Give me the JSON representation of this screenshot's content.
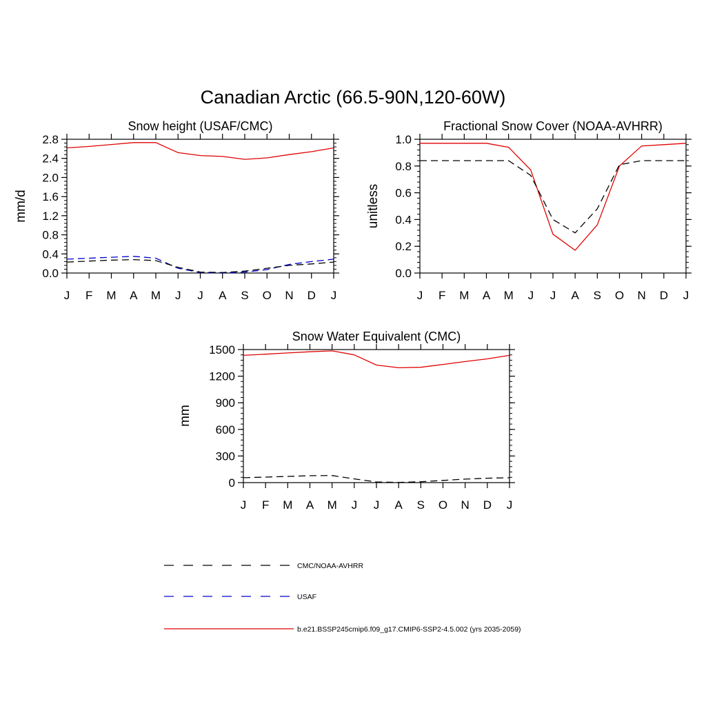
{
  "figure": {
    "title": "Canadian Arctic (66.5-90N,120-60W)"
  },
  "months": [
    "J",
    "F",
    "M",
    "A",
    "M",
    "J",
    "J",
    "A",
    "S",
    "O",
    "N",
    "D",
    "J"
  ],
  "colors": {
    "obs": "#000000",
    "usaf": "#0000cc",
    "model": "#e00000"
  },
  "legend": [
    {
      "key": "obs",
      "label": "CMC/NOAA-AVHRR",
      "style": "dashed"
    },
    {
      "key": "usaf",
      "label": "USAF",
      "style": "dashed"
    },
    {
      "key": "model",
      "label": "b.e21.BSSP245cmip6.f09_g17.CMIP6-SSP2-4.5.002 (yrs 2035-2059)",
      "style": "solid"
    }
  ],
  "chart_data": [
    {
      "type": "line",
      "title": "Snow height (USAF/CMC)",
      "xlabel": "",
      "ylabel": "mm/d",
      "ylim": [
        0,
        2.8
      ],
      "yticks": [
        "0.0",
        "0.4",
        "0.8",
        "1.2",
        "1.6",
        "2.0",
        "2.4",
        "2.8"
      ],
      "yticks_values": [
        0,
        0.4,
        0.8,
        1.2,
        1.6,
        2.0,
        2.4,
        2.8
      ],
      "yminor_step": 0.08,
      "categories": [
        "J",
        "F",
        "M",
        "A",
        "M",
        "J",
        "J",
        "A",
        "S",
        "O",
        "N",
        "D",
        "J"
      ],
      "series": [
        {
          "key": "model",
          "values": [
            2.62,
            2.65,
            2.69,
            2.73,
            2.73,
            2.52,
            2.46,
            2.44,
            2.38,
            2.41,
            2.48,
            2.54,
            2.62
          ]
        },
        {
          "key": "obs",
          "values": [
            0.23,
            0.25,
            0.27,
            0.28,
            0.26,
            0.12,
            0.02,
            0.01,
            0.04,
            0.1,
            0.16,
            0.19,
            0.23
          ]
        },
        {
          "key": "usaf",
          "values": [
            0.29,
            0.31,
            0.33,
            0.35,
            0.31,
            0.1,
            0.01,
            0.0,
            0.02,
            0.07,
            0.18,
            0.24,
            0.29
          ]
        }
      ]
    },
    {
      "type": "line",
      "title": "Fractional Snow Cover (NOAA-AVHRR)",
      "xlabel": "",
      "ylabel": "unitless",
      "ylim": [
        0,
        1.0
      ],
      "yticks": [
        "0.0",
        "0.2",
        "0.4",
        "0.6",
        "0.8",
        "1.0"
      ],
      "yticks_values": [
        0,
        0.2,
        0.4,
        0.6,
        0.8,
        1.0
      ],
      "yminor_step": 0.04,
      "categories": [
        "J",
        "F",
        "M",
        "A",
        "M",
        "J",
        "J",
        "A",
        "S",
        "O",
        "N",
        "D",
        "J"
      ],
      "series": [
        {
          "key": "model",
          "values": [
            0.97,
            0.97,
            0.97,
            0.97,
            0.94,
            0.77,
            0.29,
            0.17,
            0.36,
            0.8,
            0.95,
            0.96,
            0.97
          ]
        },
        {
          "key": "obs",
          "values": [
            0.84,
            0.84,
            0.84,
            0.84,
            0.84,
            0.73,
            0.4,
            0.3,
            0.48,
            0.81,
            0.84,
            0.84,
            0.84
          ]
        }
      ]
    },
    {
      "type": "line",
      "title": "Snow Water Equivalent (CMC)",
      "xlabel": "",
      "ylabel": "mm",
      "ylim": [
        0,
        1500
      ],
      "yticks": [
        "0",
        "300",
        "600",
        "900",
        "1200",
        "1500"
      ],
      "yticks_values": [
        0,
        300,
        600,
        900,
        1200,
        1500
      ],
      "yminor_step": 60,
      "categories": [
        "J",
        "F",
        "M",
        "A",
        "M",
        "J",
        "J",
        "A",
        "S",
        "O",
        "N",
        "D",
        "J"
      ],
      "series": [
        {
          "key": "model",
          "values": [
            1435,
            1448,
            1462,
            1475,
            1485,
            1440,
            1325,
            1295,
            1300,
            1332,
            1365,
            1395,
            1435
          ]
        },
        {
          "key": "obs",
          "values": [
            55,
            62,
            70,
            78,
            80,
            42,
            8,
            2,
            10,
            25,
            40,
            50,
            55
          ]
        }
      ]
    }
  ]
}
